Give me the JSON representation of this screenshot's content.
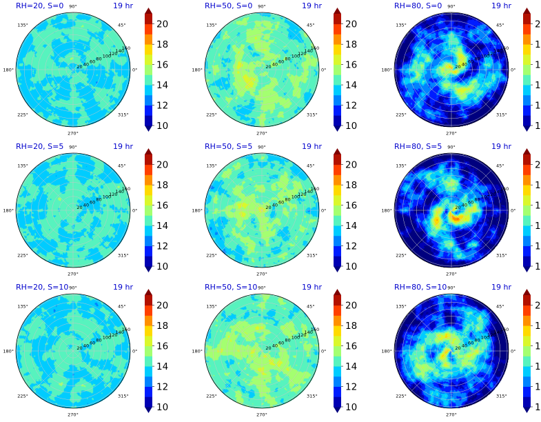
{
  "figure": {
    "colormap": "jet",
    "colormap_stops": [
      "#00007f",
      "#0000ff",
      "#007fff",
      "#00d8ff",
      "#7fffa0",
      "#c8ff40",
      "#ffe600",
      "#ff8c00",
      "#ff2a00",
      "#7f0000"
    ],
    "grid_color": "#c8c8c8",
    "contour_levels": [
      10,
      11,
      12,
      13,
      14,
      15,
      16,
      17,
      18,
      19,
      20,
      21
    ]
  },
  "chart_data": [
    {
      "type": "heatmap",
      "projection": "polar",
      "title": "RH=20, S=0",
      "time_label": "19 hr",
      "rh": 20,
      "s": 0,
      "angle_ticks": [
        "0°",
        "45°",
        "90°",
        "135°",
        "180°",
        "225°",
        "270°",
        "315°"
      ],
      "radial_ticks": [
        "20",
        "40",
        "60",
        "80",
        "100",
        "120",
        "140",
        "160"
      ],
      "colorbar": {
        "ticks": [
          "10",
          "12",
          "14",
          "16",
          "18",
          "20"
        ],
        "range": [
          10,
          21
        ],
        "extend": "both"
      },
      "value_mean": 14.2,
      "value_spread": 1.1,
      "spiral_strength": 0.08
    },
    {
      "type": "heatmap",
      "projection": "polar",
      "title": "RH=50, S=0",
      "time_label": "19 hr",
      "rh": 50,
      "s": 0,
      "angle_ticks": [
        "0°",
        "45°",
        "90°",
        "135°",
        "180°",
        "225°",
        "270°",
        "315°"
      ],
      "radial_ticks": [
        "20",
        "40",
        "60",
        "80",
        "100",
        "120",
        "140",
        "160"
      ],
      "colorbar": {
        "ticks": [
          "10",
          "12",
          "14",
          "16",
          "18",
          "20"
        ],
        "range": [
          10,
          21
        ],
        "extend": "both"
      },
      "value_mean": 15.0,
      "value_spread": 1.6,
      "spiral_strength": 0.25
    },
    {
      "type": "heatmap",
      "projection": "polar",
      "title": "RH=80, S=0",
      "time_label": "19 hr",
      "rh": 80,
      "s": 0,
      "angle_ticks": [
        "0°",
        "45°",
        "90°",
        "135°",
        "180°",
        "225°",
        "270°",
        "315°"
      ],
      "radial_ticks": [
        "20",
        "40",
        "60",
        "80",
        "100",
        "120",
        "140",
        "160"
      ],
      "colorbar": {
        "ticks": [
          "10",
          "12",
          "14",
          "16",
          "18",
          "20"
        ],
        "range": [
          10,
          21
        ],
        "extend": "both"
      },
      "value_mean": 13.5,
      "value_spread": 3.0,
      "spiral_strength": 0.8
    },
    {
      "type": "heatmap",
      "projection": "polar",
      "title": "RH=20, S=5",
      "time_label": "19 hr",
      "rh": 20,
      "s": 5,
      "angle_ticks": [
        "0°",
        "45°",
        "90°",
        "135°",
        "180°",
        "225°",
        "270°",
        "315°"
      ],
      "radial_ticks": [
        "20",
        "40",
        "60",
        "80",
        "100",
        "120",
        "140",
        "160"
      ],
      "colorbar": {
        "ticks": [
          "10",
          "12",
          "14",
          "16",
          "18",
          "20"
        ],
        "range": [
          10,
          21
        ],
        "extend": "both"
      },
      "value_mean": 14.2,
      "value_spread": 1.1,
      "spiral_strength": 0.08
    },
    {
      "type": "heatmap",
      "projection": "polar",
      "title": "RH=50, S=5",
      "time_label": "19 hr",
      "rh": 50,
      "s": 5,
      "angle_ticks": [
        "0°",
        "45°",
        "90°",
        "135°",
        "180°",
        "225°",
        "270°",
        "315°"
      ],
      "radial_ticks": [
        "20",
        "40",
        "60",
        "80",
        "100",
        "120",
        "140",
        "160"
      ],
      "colorbar": {
        "ticks": [
          "10",
          "12",
          "14",
          "16",
          "18",
          "20"
        ],
        "range": [
          10,
          21
        ],
        "extend": "both"
      },
      "value_mean": 15.0,
      "value_spread": 1.7,
      "spiral_strength": 0.3
    },
    {
      "type": "heatmap",
      "projection": "polar",
      "title": "RH=80, S=5",
      "time_label": "19 hr",
      "rh": 80,
      "s": 5,
      "angle_ticks": [
        "0°",
        "45°",
        "90°",
        "135°",
        "180°",
        "225°",
        "270°",
        "315°"
      ],
      "radial_ticks": [
        "20",
        "40",
        "60",
        "80",
        "100",
        "120",
        "140",
        "160"
      ],
      "colorbar": {
        "ticks": [
          "10",
          "12",
          "14",
          "16",
          "18",
          "20"
        ],
        "range": [
          10,
          21
        ],
        "extend": "both"
      },
      "value_mean": 13.2,
      "value_spread": 3.2,
      "spiral_strength": 0.9
    },
    {
      "type": "heatmap",
      "projection": "polar",
      "title": "RH=20, S=10",
      "time_label": "19 hr",
      "rh": 20,
      "s": 10,
      "angle_ticks": [
        "0°",
        "45°",
        "90°",
        "135°",
        "180°",
        "225°",
        "270°",
        "315°"
      ],
      "radial_ticks": [
        "20",
        "40",
        "60",
        "80",
        "100",
        "120",
        "140",
        "160"
      ],
      "colorbar": {
        "ticks": [
          "10",
          "12",
          "14",
          "16",
          "18",
          "20"
        ],
        "range": [
          10,
          21
        ],
        "extend": "both"
      },
      "value_mean": 14.2,
      "value_spread": 1.1,
      "spiral_strength": 0.08
    },
    {
      "type": "heatmap",
      "projection": "polar",
      "title": "RH=50, S=10",
      "time_label": "19 hr",
      "rh": 50,
      "s": 10,
      "angle_ticks": [
        "0°",
        "45°",
        "90°",
        "135°",
        "180°",
        "225°",
        "270°",
        "315°"
      ],
      "radial_ticks": [
        "20",
        "40",
        "60",
        "80",
        "100",
        "120",
        "140",
        "160"
      ],
      "colorbar": {
        "ticks": [
          "10",
          "12",
          "14",
          "16",
          "18",
          "20"
        ],
        "range": [
          10,
          21
        ],
        "extend": "both"
      },
      "value_mean": 15.2,
      "value_spread": 1.6,
      "spiral_strength": 0.3
    },
    {
      "type": "heatmap",
      "projection": "polar",
      "title": "RH=80, S=10",
      "time_label": "19 hr",
      "rh": 80,
      "s": 10,
      "angle_ticks": [
        "0°",
        "45°",
        "90°",
        "135°",
        "180°",
        "225°",
        "270°",
        "315°"
      ],
      "radial_ticks": [
        "20",
        "40",
        "60",
        "80",
        "100",
        "120",
        "140",
        "160"
      ],
      "colorbar": {
        "ticks": [
          "10",
          "12",
          "14",
          "16",
          "18",
          "20"
        ],
        "range": [
          10,
          21
        ],
        "extend": "both"
      },
      "value_mean": 13.8,
      "value_spread": 3.0,
      "spiral_strength": 0.85
    }
  ]
}
